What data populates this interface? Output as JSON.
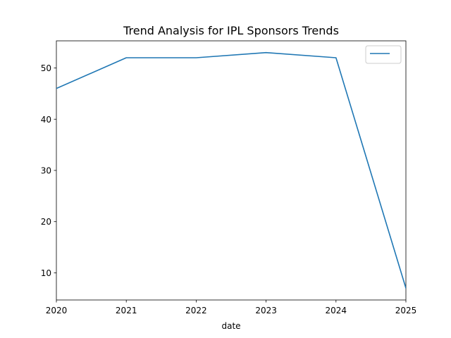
{
  "chart_data": {
    "type": "line",
    "title": "Trend Analysis for IPL Sponsors Trends",
    "xlabel": "date",
    "ylabel": "",
    "x": [
      "2020",
      "2021",
      "2022",
      "2023",
      "2024",
      "2025"
    ],
    "series": [
      {
        "name": "",
        "values": [
          46,
          52,
          52,
          53,
          52,
          7
        ],
        "color": "#1f77b4"
      }
    ],
    "xlim": [
      2020,
      2025
    ],
    "ylim": [
      4.7,
      55.3
    ],
    "yticks": [
      10,
      20,
      30,
      40,
      50
    ],
    "grid": false,
    "legend": "top-right"
  }
}
